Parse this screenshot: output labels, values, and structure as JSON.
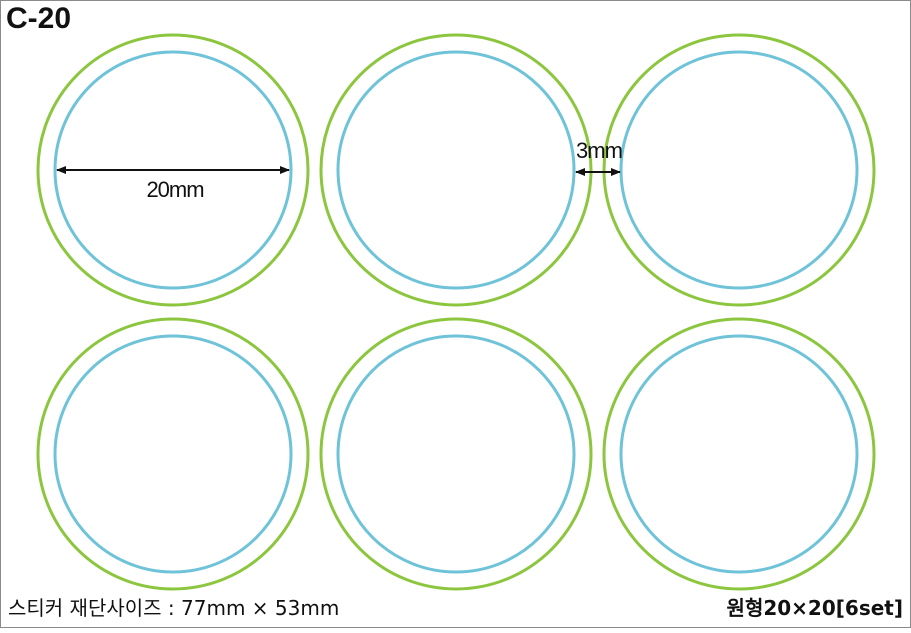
{
  "title": "C-20",
  "dimensions": {
    "diameter_label": "20mm",
    "gap_label": "3mm"
  },
  "footer": {
    "size_text": "스티커 재단사이즈 : 77mm × 53mm",
    "product_text": "원형20×20[6set]"
  },
  "layout": {
    "rows": 2,
    "columns": 3,
    "sticker_count": 6
  },
  "colors": {
    "cut_line": "#8cc63f",
    "safe_line": "#6fc3d9",
    "border": "#8a8a8a",
    "text": "#111111"
  }
}
